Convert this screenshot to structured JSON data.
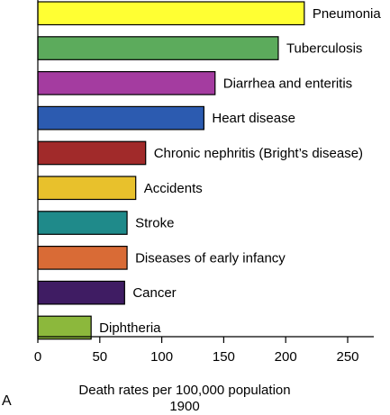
{
  "chart_data": {
    "type": "bar",
    "orientation": "horizontal",
    "categories": [
      "Pneumonia",
      "Tuberculosis",
      "Diarrhea and enteritis",
      "Heart disease",
      "Chronic nephritis (Bright’s disease)",
      "Accidents",
      "Stroke",
      "Diseases of early infancy",
      "Cancer",
      "Diphtheria"
    ],
    "values": [
      215,
      194,
      143,
      134,
      87,
      79,
      72,
      72,
      70,
      43
    ],
    "colors": [
      "#ffff33",
      "#5cab5c",
      "#a43ca0",
      "#2c5bb0",
      "#a12a2a",
      "#e8c12c",
      "#1f8a8a",
      "#d96b36",
      "#3f1c63",
      "#8cb83c"
    ],
    "xticks": [
      0,
      50,
      100,
      150,
      200,
      250
    ],
    "xlim": [
      0,
      265
    ],
    "xlabel": "Death rates per 100,000 population",
    "xlabel_year": "1900",
    "panel_label": "A",
    "grid": false,
    "legend": "none"
  }
}
